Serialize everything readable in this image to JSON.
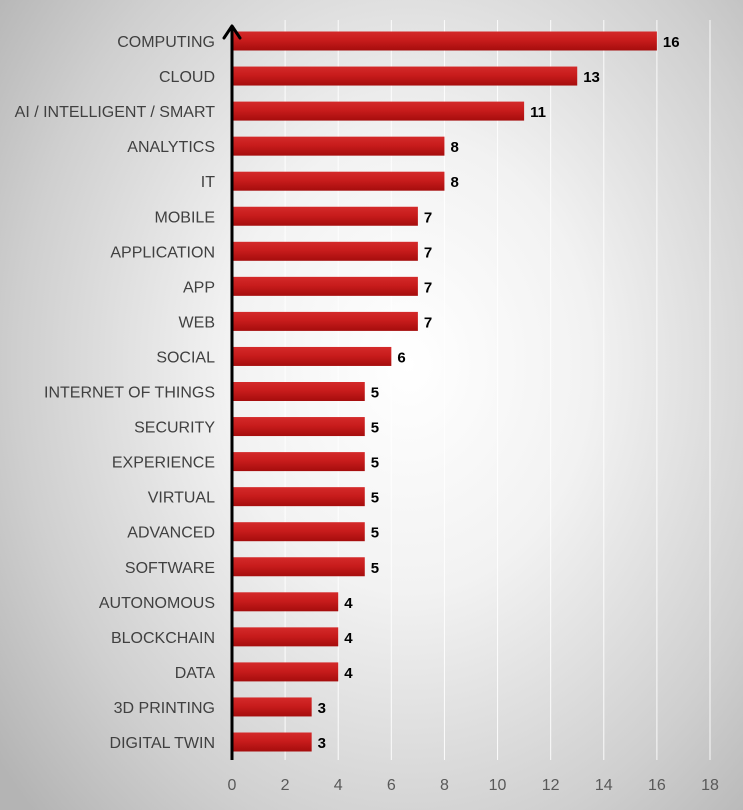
{
  "chart_data": {
    "type": "bar",
    "orientation": "horizontal",
    "title": "",
    "xlabel": "",
    "ylabel": "",
    "categories": [
      "COMPUTING",
      "CLOUD",
      "AI / INTELLIGENT / SMART",
      "ANALYTICS",
      "IT",
      "MOBILE",
      "APPLICATION",
      "APP",
      "WEB",
      "SOCIAL",
      "INTERNET OF THINGS",
      "SECURITY",
      "EXPERIENCE",
      "VIRTUAL",
      "ADVANCED",
      "SOFTWARE",
      "AUTONOMOUS",
      "BLOCKCHAIN",
      "DATA",
      "3D PRINTING",
      "DIGITAL TWIN"
    ],
    "values": [
      16,
      13,
      11,
      8,
      8,
      7,
      7,
      7,
      7,
      6,
      5,
      5,
      5,
      5,
      5,
      5,
      4,
      4,
      4,
      3,
      3
    ],
    "xlim": [
      0,
      18
    ],
    "xticks": [
      "0",
      "2",
      "4",
      "6",
      "8",
      "10",
      "12",
      "14",
      "16",
      "18"
    ],
    "grid": "vertical",
    "legend": "none",
    "colors": {
      "bar": "#c00000",
      "bar_highlight": "#e03030",
      "axis": "#000000",
      "grid": "#ffffff"
    }
  }
}
